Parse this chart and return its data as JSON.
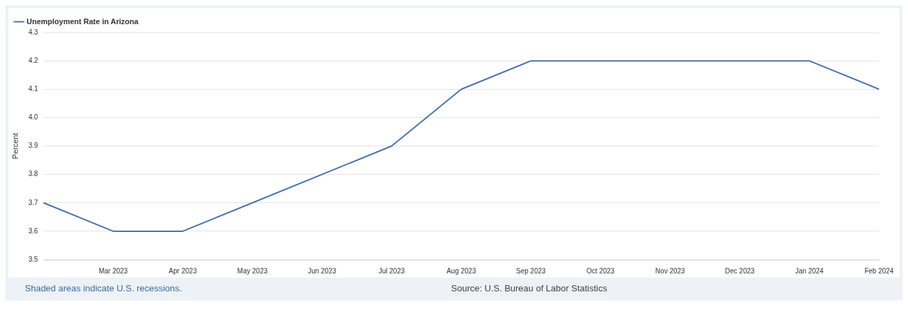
{
  "chart_data": {
    "type": "line",
    "ylabel": "Percent",
    "categories": [
      null,
      "Mar 2023",
      "Apr 2023",
      "May 2023",
      "Jun 2023",
      "Jul 2023",
      "Aug 2023",
      "Sep 2023",
      "Oct 2023",
      "Nov 2023",
      "Dec 2023",
      "Jan 2024",
      "Feb 2024"
    ],
    "series": [
      {
        "name": "Unemployment Rate in Arizona",
        "color": "#4a72a8",
        "values": [
          3.7,
          3.6,
          3.6,
          3.7,
          3.8,
          3.9,
          4.1,
          4.2,
          4.2,
          4.2,
          4.2,
          4.2,
          4.1
        ]
      }
    ],
    "ylim": [
      3.5,
      4.3
    ],
    "yticks": [
      3.5,
      3.6,
      3.7,
      3.8,
      3.9,
      {
        "value": 4.0,
        "label": "4.0"
      },
      4.1,
      4.2,
      4.3
    ],
    "grid": "y",
    "legend": "top left",
    "marker": "none",
    "line_style": "solid",
    "annotations": [
      "Shaded areas indicate U.S. recessions.",
      "Source: U.S. Bureau of Labor Statistics"
    ]
  }
}
